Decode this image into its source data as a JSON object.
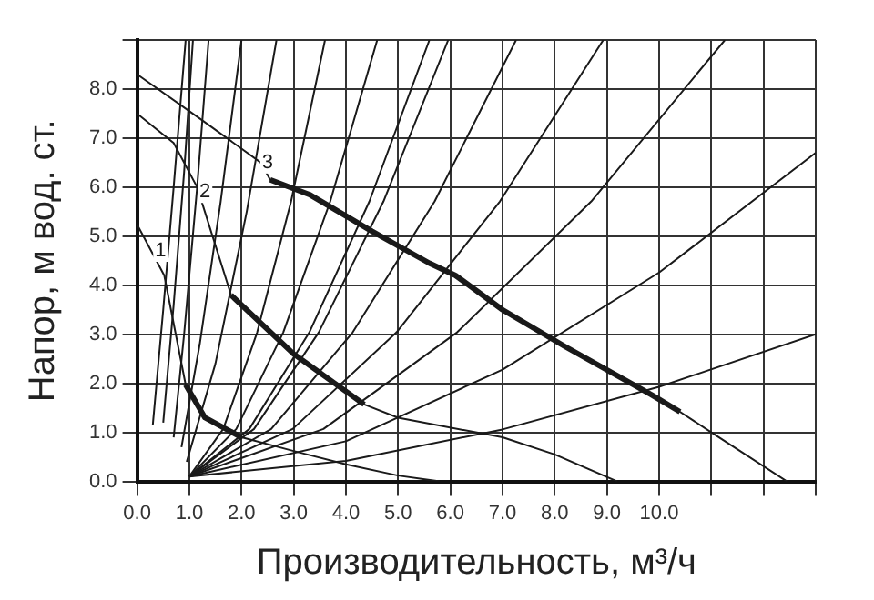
{
  "chart_data": {
    "type": "line",
    "xlabel": "Производительность, м³/ч",
    "ylabel": "Напор, м вод. ст.",
    "xlim": [
      0,
      13
    ],
    "ylim": [
      0,
      9
    ],
    "xticks": [
      {
        "value": 0,
        "label": "0.0"
      },
      {
        "value": 1,
        "label": "1.0"
      },
      {
        "value": 2,
        "label": "2.0"
      },
      {
        "value": 3,
        "label": "3.0"
      },
      {
        "value": 4,
        "label": "4.0"
      },
      {
        "value": 5,
        "label": "5.0"
      },
      {
        "value": 6,
        "label": "6.0"
      },
      {
        "value": 7,
        "label": "7.0"
      },
      {
        "value": 8,
        "label": "8.0"
      },
      {
        "value": 9,
        "label": "9.0"
      },
      {
        "value": 10,
        "label": "10.0"
      },
      {
        "value": 11,
        "label": null
      },
      {
        "value": 12,
        "label": null
      },
      {
        "value": 13,
        "label": null
      }
    ],
    "yticks": [
      {
        "value": 0,
        "label": "0.0"
      },
      {
        "value": 1,
        "label": "1.0"
      },
      {
        "value": 2,
        "label": "2.0"
      },
      {
        "value": 3,
        "label": "3.0"
      },
      {
        "value": 4,
        "label": "4.0"
      },
      {
        "value": 5,
        "label": "5.0"
      },
      {
        "value": 6,
        "label": "6.0"
      },
      {
        "value": 7,
        "label": "7.0"
      },
      {
        "value": 8,
        "label": "8.0"
      },
      {
        "value": 9,
        "label": null
      }
    ],
    "grid": true,
    "legend": false,
    "marker": "none",
    "annotations": [
      {
        "text": "1",
        "x": 0.45,
        "y": 4.7
      },
      {
        "text": "2",
        "x": 1.3,
        "y": 5.9
      },
      {
        "text": "3",
        "x": 2.5,
        "y": 6.5
      }
    ],
    "series": [
      {
        "color": "#1a1a1a",
        "x": [
          0,
          0.52,
          0.93,
          1.3,
          2.0,
          3.0,
          4.0,
          5.0,
          5.8
        ],
        "values": [
          5.24,
          4.2,
          1.97,
          1.3,
          0.9,
          0.62,
          0.35,
          0.12,
          0
        ]
      },
      {
        "color": "#1a1a1a",
        "x": [
          0,
          0.7,
          1.15,
          1.8,
          3.0,
          4.35,
          5.0,
          7.0,
          8.0,
          9.2
        ],
        "values": [
          7.5,
          6.9,
          6.0,
          3.8,
          2.6,
          1.57,
          1.3,
          0.9,
          0.55,
          0
        ]
      },
      {
        "color": "#1a1a1a",
        "x": [
          0,
          1.2,
          2.37,
          2.55,
          3.3,
          4.5,
          5.6,
          6.1,
          7.0,
          8.2,
          9.85,
          10.4,
          11.0,
          12.45
        ],
        "values": [
          8.3,
          7.4,
          6.5,
          6.15,
          5.85,
          5.1,
          4.45,
          4.2,
          3.5,
          2.75,
          1.77,
          1.42,
          1.0,
          0
        ]
      },
      {
        "color": "#1a1a1a",
        "x": [
          0.93,
          1.3,
          2.0
        ],
        "values": [
          1.97,
          1.3,
          0.9
        ]
      },
      {
        "color": "#1a1a1a",
        "x": [
          1.8,
          3.0,
          4.35
        ],
        "values": [
          3.8,
          2.6,
          1.57
        ]
      },
      {
        "color": "#1a1a1a",
        "x": [
          2.55,
          3.3,
          4.5,
          5.6,
          6.1,
          7.0,
          8.2,
          9.85,
          10.4
        ],
        "values": [
          6.15,
          5.85,
          5.1,
          4.45,
          4.2,
          3.5,
          2.75,
          1.77,
          1.42
        ]
      },
      {
        "color": "#1a1a1a",
        "x": [
          0.3,
          0.5,
          0.7,
          0.93
        ],
        "values": [
          1.15,
          3.5,
          6.0,
          9
        ]
      },
      {
        "color": "#1a1a1a",
        "x": [
          0.5,
          0.7,
          0.9,
          1.07
        ],
        "values": [
          1.2,
          3.6,
          6.3,
          9
        ]
      },
      {
        "color": "#1a1a1a",
        "x": [
          0.7,
          0.9,
          1.15,
          1.37
        ],
        "values": [
          0.9,
          3.0,
          6.0,
          9
        ]
      },
      {
        "color": "#1a1a1a",
        "x": [
          0.85,
          1.2,
          1.6,
          2.0
        ],
        "values": [
          0.7,
          2.8,
          5.7,
          9
        ]
      },
      {
        "color": "#1a1a1a",
        "x": [
          0.95,
          1.5,
          2.1,
          2.67
        ],
        "values": [
          0.4,
          2.4,
          5.5,
          9
        ]
      },
      {
        "color": "#1a1a1a",
        "x": [
          1,
          1.65,
          2.3,
          2.95,
          3.6
        ],
        "values": [
          0.1,
          1.07,
          3.04,
          5.71,
          9
        ]
      },
      {
        "color": "#1a1a1a",
        "x": [
          1,
          1.9,
          2.8,
          3.7,
          4.6
        ],
        "values": [
          0.1,
          1.07,
          3.04,
          5.71,
          9
        ]
      },
      {
        "color": "#1a1a1a",
        "x": [
          1,
          2.15,
          3.3,
          4.45,
          5.6
        ],
        "values": [
          0.1,
          1.07,
          3.04,
          5.71,
          9
        ]
      },
      {
        "color": "#1a1a1a",
        "x": [
          1,
          2.24,
          3.48,
          4.72,
          5.96
        ],
        "values": [
          0.1,
          1.07,
          3.04,
          5.71,
          9
        ]
      },
      {
        "color": "#1a1a1a",
        "x": [
          1,
          2.57,
          4.13,
          5.7,
          7.26
        ],
        "values": [
          0.1,
          1.07,
          3.04,
          5.71,
          9
        ]
      },
      {
        "color": "#1a1a1a",
        "x": [
          1,
          2.98,
          4.97,
          6.95,
          8.93
        ],
        "values": [
          0.1,
          1.07,
          3.04,
          5.71,
          9
        ]
      },
      {
        "color": "#1a1a1a",
        "x": [
          1,
          3.57,
          6.13,
          8.7,
          11.26
        ],
        "values": [
          0.1,
          1.07,
          3.04,
          5.71,
          9
        ]
      },
      {
        "color": "#1a1a1a",
        "x": [
          1,
          4,
          7,
          10,
          13
        ],
        "values": [
          0.1,
          0.82,
          2.28,
          4.26,
          6.7
        ]
      },
      {
        "color": "#1a1a1a",
        "x": [
          1,
          4,
          7,
          10,
          13
        ],
        "values": [
          0.1,
          0.42,
          1.06,
          1.93,
          3.0
        ]
      }
    ]
  }
}
